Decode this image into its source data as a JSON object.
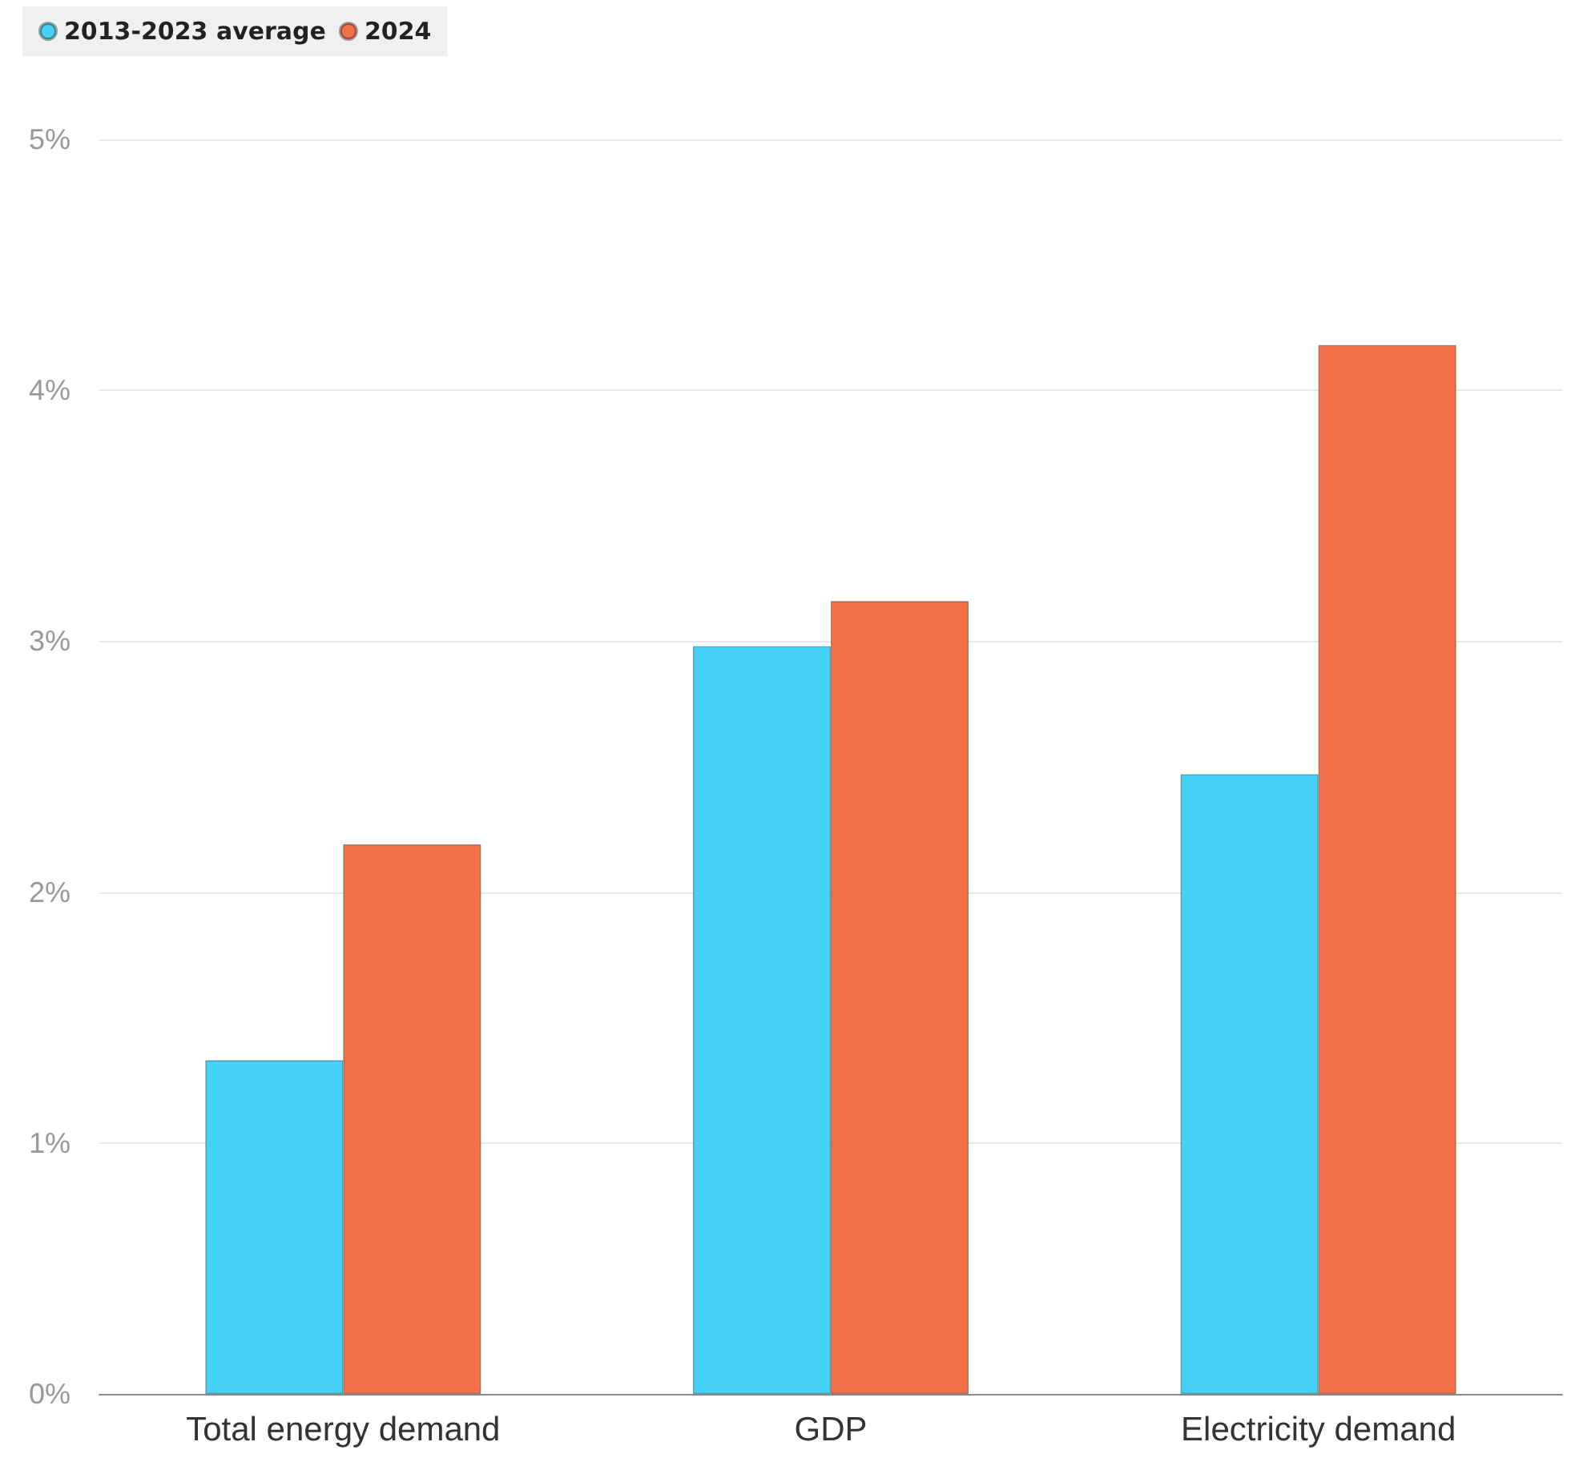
{
  "chart_data": {
    "type": "bar",
    "categories": [
      "Total energy demand",
      "GDP",
      "Electricity demand"
    ],
    "series": [
      {
        "name": "2013-2023 average",
        "color": "#45d0f5",
        "values": [
          1.33,
          2.98,
          2.47
        ]
      },
      {
        "name": "2024",
        "color": "#f5714a",
        "values": [
          2.19,
          3.16,
          4.18
        ]
      }
    ],
    "ylim": [
      0,
      5
    ],
    "yticks": [
      {
        "value": 0,
        "label": "0%"
      },
      {
        "value": 1,
        "label": "1%"
      },
      {
        "value": 2,
        "label": "2%"
      },
      {
        "value": 3,
        "label": "3%"
      },
      {
        "value": 4,
        "label": "4%"
      },
      {
        "value": 5,
        "label": "5%"
      }
    ],
    "grid": "y",
    "legend": "top left"
  }
}
